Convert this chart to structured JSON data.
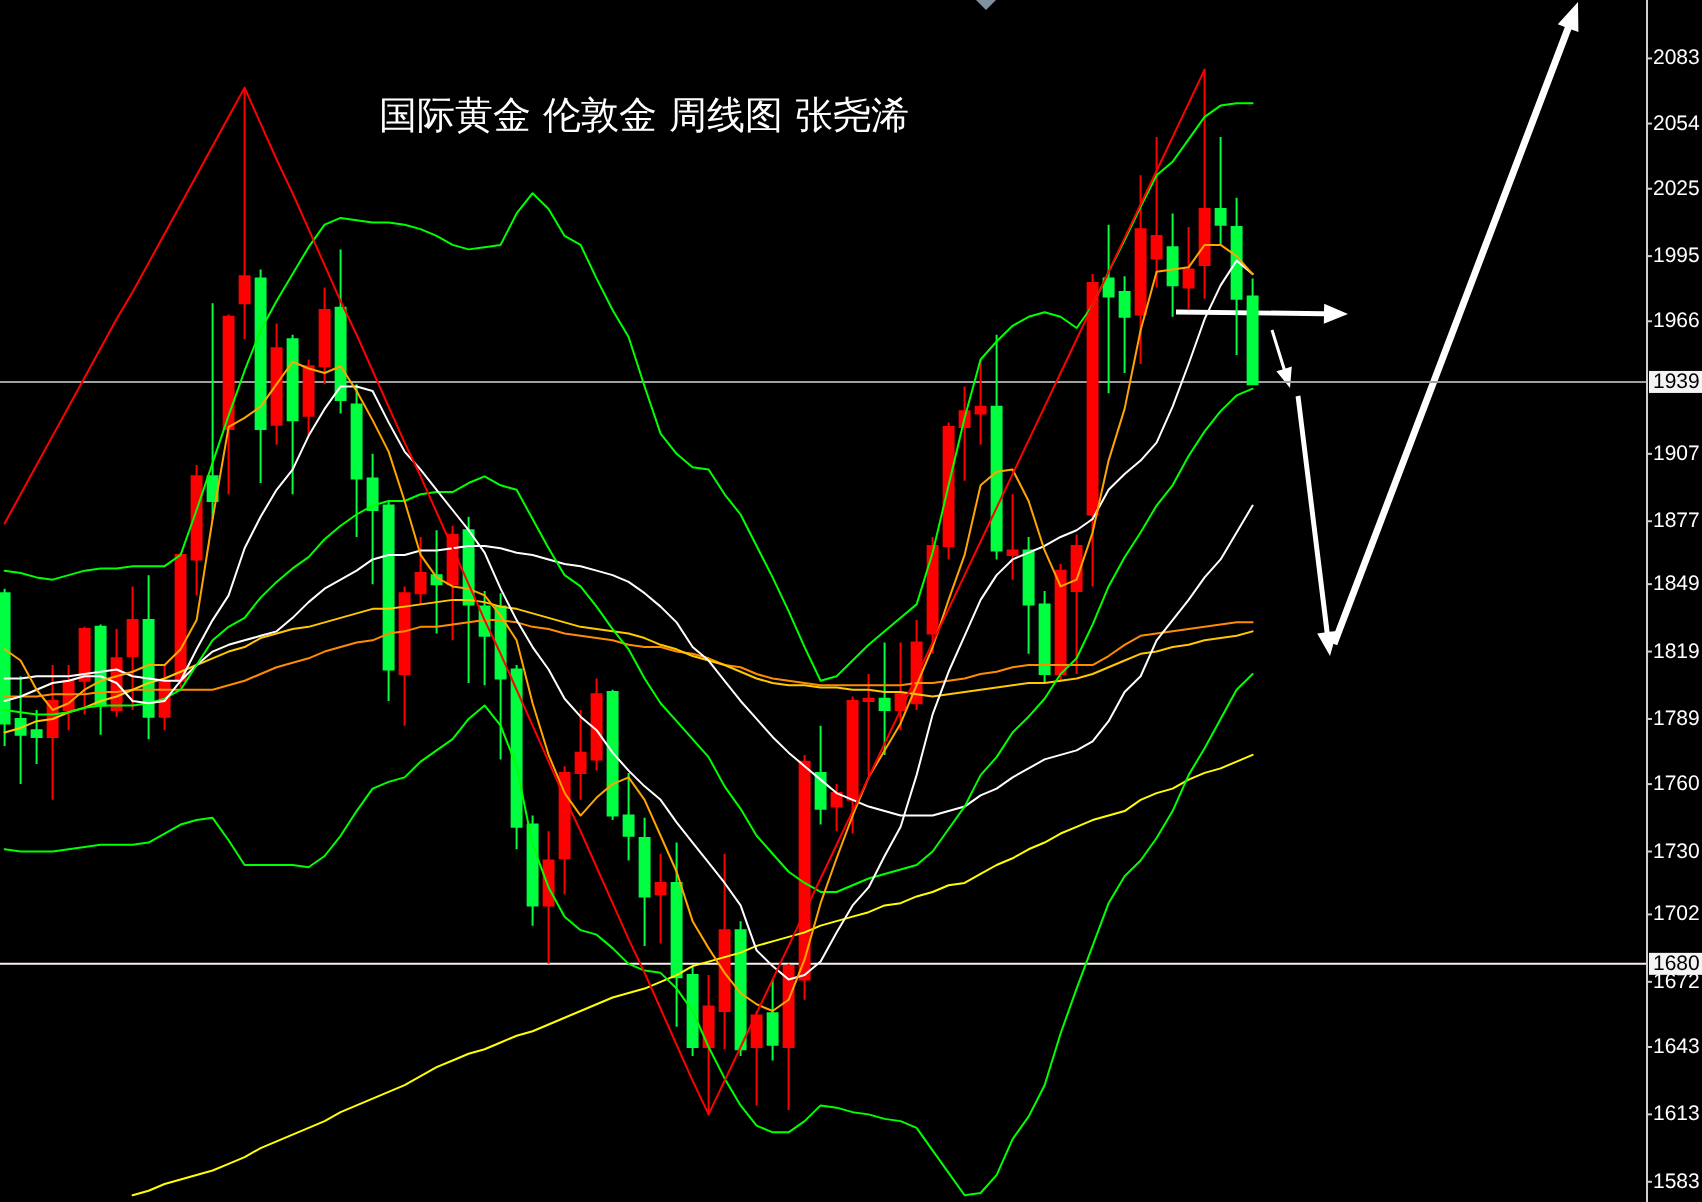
{
  "chart_data": {
    "type": "candlestick",
    "title": "国际黄金 伦敦金 周线图 张尧浠",
    "categories": [
      null,
      null,
      null,
      null,
      null,
      null,
      null,
      null,
      null,
      null,
      null,
      null,
      null,
      null,
      null,
      null,
      null,
      null,
      null,
      null,
      null,
      null,
      null,
      null,
      null,
      null,
      null,
      null,
      null,
      null,
      null,
      null,
      null,
      null,
      null,
      null,
      null,
      null,
      null,
      null,
      null,
      null,
      null,
      null,
      null,
      null,
      null,
      null,
      null,
      null,
      null,
      null,
      null,
      null,
      null,
      null,
      null,
      null,
      null,
      null,
      null,
      null,
      null,
      null,
      null,
      null,
      null,
      null,
      null,
      null,
      null,
      null,
      null,
      null,
      null,
      null,
      null,
      null,
      null
    ],
    "ohlc": [
      [
        1845,
        1847,
        1777,
        1787
      ],
      [
        1789,
        1808,
        1760,
        1782
      ],
      [
        1784,
        1793,
        1769,
        1781
      ],
      [
        1781,
        1813,
        1753,
        1797
      ],
      [
        1793,
        1813,
        1784,
        1806
      ],
      [
        1806,
        1830,
        1791,
        1829
      ],
      [
        1830,
        1831,
        1782,
        1795
      ],
      [
        1793,
        1829,
        1790,
        1816
      ],
      [
        1817,
        1848,
        1793,
        1833
      ],
      [
        1833,
        1853,
        1780,
        1790
      ],
      [
        1790,
        1813,
        1784,
        1806
      ],
      [
        1806,
        1863,
        1803,
        1862
      ],
      [
        1860,
        1902,
        1844,
        1897
      ],
      [
        1897,
        1974,
        1878,
        1886
      ],
      [
        1918,
        1969,
        1889,
        1968
      ],
      [
        1974,
        2069,
        1958,
        1986
      ],
      [
        1985,
        1989,
        1894,
        1918
      ],
      [
        1920,
        1965,
        1911,
        1954
      ],
      [
        1958,
        1960,
        1889,
        1922
      ],
      [
        1924,
        1949,
        1915,
        1946
      ],
      [
        1946,
        1981,
        1938,
        1971
      ],
      [
        1972,
        1998,
        1925,
        1931
      ],
      [
        1929,
        1938,
        1870,
        1896
      ],
      [
        1896,
        1907,
        1849,
        1882
      ],
      [
        1884,
        1886,
        1797,
        1811
      ],
      [
        1809,
        1848,
        1786,
        1845
      ],
      [
        1845,
        1870,
        1840,
        1854
      ],
      [
        1853,
        1873,
        1827,
        1849
      ],
      [
        1849,
        1875,
        1824,
        1871
      ],
      [
        1873,
        1879,
        1805,
        1840
      ],
      [
        1839,
        1846,
        1804,
        1826
      ],
      [
        1839,
        1845,
        1771,
        1807
      ],
      [
        1811,
        1813,
        1731,
        1741
      ],
      [
        1742,
        1746,
        1697,
        1706
      ],
      [
        1706,
        1739,
        1680,
        1726
      ],
      [
        1727,
        1768,
        1711,
        1765
      ],
      [
        1765,
        1793,
        1753,
        1774
      ],
      [
        1771,
        1807,
        1766,
        1800
      ],
      [
        1801,
        1802,
        1744,
        1746
      ],
      [
        1746,
        1765,
        1726,
        1737
      ],
      [
        1736,
        1745,
        1688,
        1710
      ],
      [
        1711,
        1729,
        1689,
        1716
      ],
      [
        1716,
        1734,
        1652,
        1674
      ],
      [
        1675,
        1679,
        1639,
        1643
      ],
      [
        1643,
        1675,
        1613,
        1661
      ],
      [
        1659,
        1729,
        1642,
        1695
      ],
      [
        1695,
        1699,
        1639,
        1642
      ],
      [
        1643,
        1659,
        1617,
        1657
      ],
      [
        1658,
        1673,
        1637,
        1644
      ],
      [
        1643,
        1680,
        1615,
        1679
      ],
      [
        1673,
        1773,
        1664,
        1770
      ],
      [
        1765,
        1786,
        1742,
        1749
      ],
      [
        1750,
        1760,
        1739,
        1756
      ],
      [
        1753,
        1799,
        1738,
        1797
      ],
      [
        1797,
        1809,
        1764,
        1798
      ],
      [
        1798,
        1823,
        1773,
        1793
      ],
      [
        1793,
        1823,
        1784,
        1800
      ],
      [
        1796,
        1833,
        1793,
        1823
      ],
      [
        1827,
        1870,
        1818,
        1866
      ],
      [
        1866,
        1921,
        1860,
        1919
      ],
      [
        1919,
        1937,
        1895,
        1926
      ],
      [
        1925,
        1949,
        1911,
        1928
      ],
      [
        1928,
        1960,
        1860,
        1864
      ],
      [
        1862,
        1889,
        1851,
        1864
      ],
      [
        1864,
        1870,
        1818,
        1840
      ],
      [
        1840,
        1846,
        1805,
        1809
      ],
      [
        1809,
        1858,
        1806,
        1855
      ],
      [
        1846,
        1871,
        1809,
        1866
      ],
      [
        1880,
        1987,
        1848,
        1983
      ],
      [
        1985,
        2009,
        1934,
        1977
      ],
      [
        1979,
        1986,
        1943,
        1968
      ],
      [
        1969,
        2031,
        1947,
        2007
      ],
      [
        1994,
        2048,
        1981,
        2004
      ],
      [
        1999,
        2014,
        1968,
        1982
      ],
      [
        1981,
        2008,
        1971,
        1989
      ],
      [
        1991,
        2078,
        1976,
        2016
      ],
      [
        2016,
        2048,
        2000,
        2009
      ],
      [
        2008,
        2021,
        1951,
        1976
      ],
      [
        1977,
        1985,
        1938,
        1938
      ]
    ],
    "colors": [
      "#00ff40",
      "#00ff40",
      "#00ff40",
      "#ff0000",
      "#ff0000",
      "#ff0000",
      "#00ff40",
      "#ff0000",
      "#ff0000",
      "#00ff40",
      "#ff0000",
      "#ff0000",
      "#ff0000",
      "#00ff40",
      "#ff0000",
      "#ff0000",
      "#00ff40",
      "#ff0000",
      "#00ff40",
      "#ff0000",
      "#ff0000",
      "#00ff40",
      "#00ff40",
      "#00ff40",
      "#00ff40",
      "#ff0000",
      "#ff0000",
      "#00ff40",
      "#ff0000",
      "#00ff40",
      "#00ff40",
      "#00ff40",
      "#00ff40",
      "#00ff40",
      "#ff0000",
      "#ff0000",
      "#ff0000",
      "#ff0000",
      "#00ff40",
      "#00ff40",
      "#00ff40",
      "#ff0000",
      "#00ff40",
      "#00ff40",
      "#ff0000",
      "#ff0000",
      "#00ff40",
      "#ff0000",
      "#00ff40",
      "#ff0000",
      "#ff0000",
      "#00ff40",
      "#ff0000",
      "#ff0000",
      "#ff0000",
      "#00ff40",
      "#ff0000",
      "#ff0000",
      "#ff0000",
      "#ff0000",
      "#ff0000",
      "#ff0000",
      "#00ff40",
      "#ff0000",
      "#00ff40",
      "#00ff40",
      "#ff0000",
      "#ff0000",
      "#ff0000",
      "#00ff40",
      "#00ff40",
      "#ff0000",
      "#ff0000",
      "#00ff40",
      "#ff0000",
      "#ff0000",
      "#00ff40",
      "#00ff40",
      "#00ff40"
    ],
    "series": [
      {
        "type": "line",
        "color": "#ffff00",
        "values": [
          null,
          null,
          null,
          null,
          null,
          null,
          null,
          null,
          1577,
          1579,
          1582,
          1584,
          1586,
          1588,
          1591,
          1594,
          1598,
          1601,
          1604,
          1607,
          1610,
          1614,
          1617,
          1620,
          1623,
          1626,
          1630,
          1634,
          1637,
          1640,
          1642,
          1645,
          1648,
          1650,
          1653,
          1656,
          1659,
          1662,
          1665,
          1667,
          1669,
          1672,
          1675,
          1679,
          1681,
          1683,
          1685,
          1688,
          1690,
          1692,
          1694,
          1697,
          1699,
          1701,
          1703,
          1706,
          1707,
          1710,
          1712,
          1715,
          1716,
          1720,
          1724,
          1727,
          1731,
          1734,
          1738,
          1741,
          1744,
          1746,
          1748,
          1753,
          1756,
          1758,
          1762,
          1765,
          1767,
          1770,
          1773
        ]
      },
      {
        "type": "line",
        "color": "#ff8c00",
        "values": [
          1799,
          1799,
          1799,
          1800,
          1800,
          1800,
          1801,
          1801,
          1802,
          1802,
          1802,
          1802,
          1802,
          1802,
          1804,
          1806,
          1809,
          1812,
          1814,
          1816,
          1819,
          1821,
          1823,
          1824,
          1827,
          1828,
          1830,
          1830,
          1831,
          1832,
          1833,
          1833,
          1832,
          1830,
          1829,
          1827,
          1826,
          1825,
          1824,
          1822,
          1821,
          1821,
          1819,
          1818,
          1816,
          1813,
          1812,
          1809,
          1807,
          1806,
          1805,
          1804,
          1804,
          1804,
          1804,
          1804,
          1804,
          1805,
          1805,
          1806,
          1807,
          1809,
          1810,
          1812,
          1813,
          1813,
          1813,
          1813,
          1813,
          1817,
          1822,
          1826,
          1827,
          1828,
          1829,
          1830,
          1831,
          1832,
          1832
        ]
      },
      {
        "type": "line",
        "color": "#ffc800",
        "values": [
          1783,
          1785,
          1788,
          1789,
          1792,
          1794,
          1797,
          1799,
          1802,
          1805,
          1807,
          1810,
          1813,
          1816,
          1819,
          1821,
          1825,
          1827,
          1829,
          1830,
          1832,
          1834,
          1836,
          1838,
          1838,
          1839,
          1840,
          1841,
          1842,
          1842,
          1841,
          1839,
          1838,
          1836,
          1834,
          1832,
          1830,
          1829,
          1828,
          1827,
          1825,
          1822,
          1820,
          1817,
          1815,
          1813,
          1810,
          1807,
          1805,
          1804,
          1804,
          1803,
          1803,
          1802,
          1802,
          1801,
          1801,
          1800,
          1799,
          1800,
          1801,
          1802,
          1803,
          1804,
          1805,
          1805,
          1806,
          1807,
          1809,
          1812,
          1815,
          1818,
          1819,
          1821,
          1822,
          1824,
          1825,
          1826,
          1828
        ]
      },
      {
        "type": "line",
        "color": "#ffffff",
        "values": [
          1807,
          1807,
          1808,
          1808,
          1808,
          1809,
          1810,
          1811,
          1808,
          1807,
          1806,
          1806,
          1813,
          1819,
          1822,
          1824,
          1826,
          1828,
          1834,
          1841,
          1847,
          1851,
          1855,
          1860,
          1862,
          1862,
          1864,
          1864,
          1865,
          1866,
          1866,
          1865,
          1863,
          1862,
          1860,
          1858,
          1857,
          1855,
          1853,
          1850,
          1845,
          1839,
          1832,
          1821,
          1815,
          1806,
          1797,
          1789,
          1781,
          1774,
          1768,
          1762,
          1756,
          1753,
          1750,
          1748,
          1746,
          1746,
          1746,
          1748,
          1750,
          1755,
          1758,
          1763,
          1767,
          1771,
          1773,
          1775,
          1779,
          1788,
          1801,
          1808,
          1824,
          1833,
          1842,
          1852,
          1860,
          1872,
          1884
        ]
      },
      {
        "type": "line",
        "color": "#00ff00",
        "values": [
          1855,
          1854,
          1852,
          1851,
          1853,
          1855,
          1856,
          1856,
          1857,
          1857,
          1857,
          1862,
          1882,
          1903,
          1924,
          1944,
          1962,
          1975,
          1987,
          1999,
          2009,
          2012,
          2011,
          2010,
          2010,
          2009,
          2007,
          2004,
          2000,
          1998,
          1999,
          2000,
          2014,
          2023,
          2016,
          2004,
          2000,
          1985,
          1971,
          1959,
          1937,
          1916,
          1907,
          1901,
          1900,
          1889,
          1880,
          1866,
          1852,
          1837,
          1821,
          1806,
          1808,
          1815,
          1822,
          1828,
          1834,
          1840,
          1863,
          1893,
          1923,
          1949,
          1957,
          1964,
          1968,
          1970,
          1968,
          1963,
          1973,
          1988,
          2002,
          2017,
          2031,
          2037,
          2047,
          2057,
          2062,
          2063,
          2063
        ]
      },
      {
        "type": "line",
        "color": "#00ff00",
        "values": [
          1793,
          1792,
          1791,
          1791,
          1792,
          1794,
          1795,
          1795,
          1795,
          1796,
          1798,
          1802,
          1813,
          1824,
          1830,
          1834,
          1843,
          1850,
          1856,
          1861,
          1869,
          1875,
          1880,
          1884,
          1886,
          1886,
          1889,
          1890,
          1890,
          1894,
          1897,
          1893,
          1891,
          1878,
          1865,
          1853,
          1848,
          1839,
          1829,
          1820,
          1807,
          1796,
          1788,
          1780,
          1772,
          1759,
          1749,
          1737,
          1729,
          1721,
          1716,
          1712,
          1712,
          1715,
          1718,
          1720,
          1722,
          1724,
          1730,
          1740,
          1750,
          1764,
          1772,
          1783,
          1790,
          1798,
          1809,
          1816,
          1831,
          1848,
          1861,
          1872,
          1884,
          1893,
          1906,
          1917,
          1926,
          1933,
          1936
        ]
      },
      {
        "type": "line",
        "color": "#00ff00",
        "values": [
          1731,
          1730,
          1730,
          1730,
          1731,
          1732,
          1733,
          1733,
          1733,
          1734,
          1738,
          1742,
          1744,
          1745,
          1735,
          1724,
          1724,
          1724,
          1724,
          1723,
          1728,
          1737,
          1748,
          1758,
          1761,
          1763,
          1770,
          1775,
          1780,
          1789,
          1795,
          1786,
          1768,
          1733,
          1714,
          1701,
          1695,
          1693,
          1687,
          1680,
          1677,
          1676,
          1669,
          1659,
          1643,
          1629,
          1617,
          1608,
          1605,
          1605,
          1610,
          1617,
          1616,
          1614,
          1613,
          1611,
          1610,
          1607,
          1597,
          1587,
          1577,
          1578,
          1586,
          1602,
          1612,
          1626,
          1649,
          1669,
          1688,
          1707,
          1719,
          1726,
          1736,
          1748,
          1764,
          1776,
          1789,
          1802,
          1809
        ]
      },
      {
        "type": "line",
        "color": "#ffffff",
        "values": [
          1797,
          1799,
          1802,
          1805,
          1806,
          1808,
          1808,
          1805,
          1797,
          1796,
          1797,
          1806,
          1820,
          1833,
          1844,
          1865,
          1879,
          1891,
          1900,
          1915,
          1927,
          1937,
          1937,
          1935,
          1921,
          1908,
          1900,
          1891,
          1882,
          1873,
          1863,
          1847,
          1833,
          1821,
          1811,
          1798,
          1790,
          1784,
          1774,
          1766,
          1759,
          1753,
          1743,
          1734,
          1725,
          1716,
          1706,
          1686,
          1679,
          1673,
          1675,
          1681,
          1694,
          1706,
          1714,
          1728,
          1741,
          1764,
          1791,
          1810,
          1826,
          1842,
          1853,
          1860,
          1863,
          1866,
          1870,
          1873,
          1878,
          1891,
          1898,
          1904,
          1912,
          1928,
          1947,
          1967,
          1982,
          1993,
          1987
        ]
      },
      {
        "type": "line",
        "color": "#ffa500",
        "values": [
          1820,
          1815,
          1802,
          1793,
          1796,
          1802,
          1806,
          1808,
          1810,
          1813,
          1813,
          1820,
          1833,
          1878,
          1919,
          1923,
          1928,
          1938,
          1948,
          1945,
          1943,
          1946,
          1935,
          1922,
          1908,
          1886,
          1862,
          1852,
          1848,
          1847,
          1844,
          1835,
          1824,
          1796,
          1773,
          1756,
          1746,
          1754,
          1760,
          1763,
          1753,
          1737,
          1721,
          1699,
          1687,
          1676,
          1667,
          1662,
          1659,
          1664,
          1682,
          1707,
          1727,
          1746,
          1763,
          1775,
          1787,
          1804,
          1821,
          1842,
          1862,
          1893,
          1899,
          1900,
          1886,
          1864,
          1848,
          1851,
          1872,
          1904,
          1927,
          1962,
          1988,
          1989,
          1990,
          2000,
          2000,
          1995,
          1987
        ]
      },
      {
        "type": "line",
        "color": "#ff0000",
        "values": [
          1876,
          1889,
          1902,
          1915,
          1928,
          1941,
          1954,
          1967,
          1979,
          1992,
          2005,
          2018,
          2031,
          2044,
          2057,
          2070,
          2054,
          2038,
          2023,
          2007,
          1991,
          1975,
          1960,
          1944,
          1928,
          1912,
          1897,
          1881,
          1865,
          1849,
          1833,
          1818,
          1802,
          1786,
          1770,
          1754,
          1739,
          1723,
          1707,
          1691,
          1676,
          1660,
          1644,
          1628,
          1613,
          1628,
          1643,
          1658,
          1673,
          1688,
          1703,
          1718,
          1733,
          1748,
          1763,
          1778,
          1793,
          1808,
          1823,
          1838,
          1853,
          1868,
          1883,
          1898,
          1913,
          1928,
          1943,
          1958,
          1973,
          1988,
          2003,
          2018,
          2033,
          2048,
          2063,
          2078,
          null,
          null,
          null
        ]
      }
    ],
    "ylim": [
      1574,
      2109
    ],
    "yticks": [
      2083,
      2054,
      2025,
      1995,
      1966,
      1907,
      1877,
      1849,
      1819,
      1789,
      1760,
      1730,
      1702,
      1672,
      1643,
      1613,
      1583
    ],
    "ref_lines": [
      {
        "axis": "y",
        "value": 1939,
        "label": "1939",
        "color": "#a0a0a0"
      },
      {
        "axis": "y",
        "value": 1680,
        "label": "1680",
        "color": "#fff0f0"
      }
    ],
    "tick_labels": "y"
  }
}
